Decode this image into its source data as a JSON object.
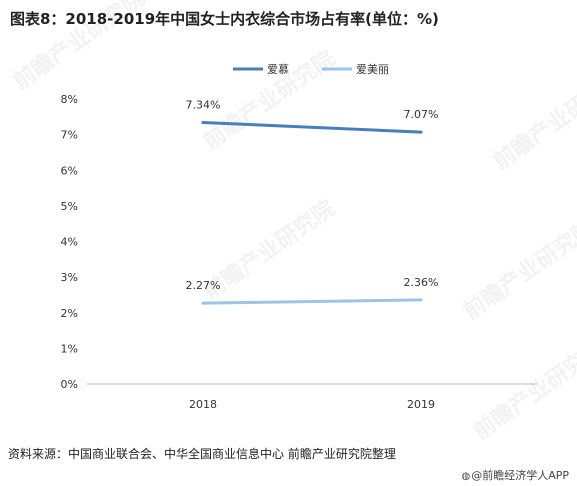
{
  "title": "图表8：2018-2019年中国女士内衣综合市场占有率(单位：%)",
  "source": "资料来源：中国商业联合会、中华全国商业信息中心 前瞻产业研究院整理",
  "brand": "@前瞻经济学人APP",
  "watermark": "前瞻产业研究院",
  "chart_data": {
    "type": "line",
    "title": "图表8：2018-2019年中国女士内衣综合市场占有率(单位：%)",
    "categories": [
      "2018",
      "2019"
    ],
    "series": [
      {
        "name": "爱慕",
        "values": [
          7.34,
          7.07
        ],
        "labels": [
          "7.34%",
          "7.07%"
        ],
        "color": "#4a7ebb"
      },
      {
        "name": "爱美丽",
        "values": [
          2.27,
          2.36
        ],
        "labels": [
          "2.27%",
          "2.36%"
        ],
        "color": "#9dc3e6"
      }
    ],
    "ylim": [
      0,
      8
    ],
    "yticks": [
      "0%",
      "1%",
      "2%",
      "3%",
      "4%",
      "5%",
      "6%",
      "7%",
      "8%"
    ],
    "legend": "top-center",
    "grid": false
  }
}
